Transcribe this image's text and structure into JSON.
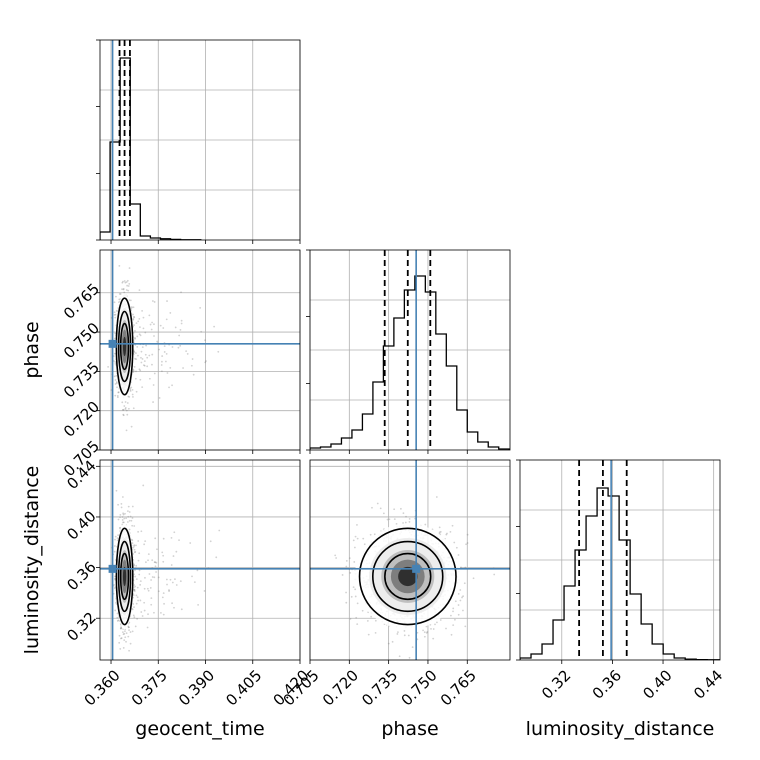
{
  "chart_data": {
    "type": "corner",
    "parameters": [
      "geocent_time",
      "phase",
      "luminosity_distance"
    ],
    "truth": {
      "geocent_time": 0.3605,
      "phase": 0.7455,
      "luminosity_distance": 0.359
    },
    "colors": {
      "truth": "#4682b4",
      "contour": "#000000",
      "hist": "#000000",
      "grid": "#b0b0b0",
      "points": "#7f7f7f"
    },
    "ranges": {
      "geocent_time": [
        0.3565,
        0.42
      ],
      "phase": [
        0.705,
        0.7813
      ],
      "luminosity_distance": [
        0.287,
        0.445
      ]
    },
    "ticks": {
      "geocent_time": [
        "0.360",
        "0.375",
        "0.390",
        "0.405",
        "0.420"
      ],
      "phase": [
        "0.705",
        "0.720",
        "0.735",
        "0.750",
        "0.765"
      ],
      "luminosity_distance": [
        "0.32",
        "0.36",
        "0.40",
        "0.44"
      ]
    },
    "hist1d": {
      "geocent_time": {
        "edges": [
          0.3565,
          0.3597,
          0.3629,
          0.3661,
          0.3693,
          0.3725,
          0.3757,
          0.3789,
          0.3821,
          0.3853,
          0.3885
        ],
        "counts": [
          0.04,
          0.49,
          0.91,
          0.18,
          0.02,
          0.01,
          0.006,
          0.003,
          0.001,
          0.001
        ],
        "quantiles": [
          0.3627,
          0.3643,
          0.366
        ]
      },
      "phase": {
        "edges": [
          0.705,
          0.709,
          0.713,
          0.717,
          0.721,
          0.725,
          0.729,
          0.733,
          0.737,
          0.741,
          0.745,
          0.749,
          0.753,
          0.757,
          0.761,
          0.765,
          0.769,
          0.773,
          0.777,
          0.781
        ],
        "counts": [
          0.01,
          0.015,
          0.03,
          0.06,
          0.1,
          0.18,
          0.34,
          0.52,
          0.66,
          0.8,
          0.87,
          0.79,
          0.58,
          0.42,
          0.2,
          0.09,
          0.04,
          0.015,
          0.005
        ],
        "quantiles": [
          0.7335,
          0.7423,
          0.7509
        ]
      },
      "luminosity_distance": {
        "edges": [
          0.287,
          0.2957,
          0.3044,
          0.3131,
          0.3218,
          0.3305,
          0.3392,
          0.3479,
          0.3566,
          0.3653,
          0.374,
          0.3827,
          0.3914,
          0.4001,
          0.4088,
          0.4175,
          0.4262,
          0.4349,
          0.445
        ],
        "counts": [
          0.01,
          0.03,
          0.08,
          0.2,
          0.37,
          0.55,
          0.72,
          0.86,
          0.82,
          0.6,
          0.33,
          0.18,
          0.08,
          0.03,
          0.01,
          0.004,
          0.002,
          0.001
        ],
        "quantiles": [
          0.3337,
          0.3525,
          0.3713
        ]
      }
    },
    "hist2d": [
      {
        "x": "geocent_time",
        "y": "phase",
        "center": [
          0.3643,
          0.7445
        ],
        "sigma": [
          0.0013,
          0.0092
        ]
      },
      {
        "x": "geocent_time",
        "y": "luminosity_distance",
        "center": [
          0.3643,
          0.353
        ],
        "sigma": [
          0.0013,
          0.019
        ]
      },
      {
        "x": "phase",
        "y": "luminosity_distance",
        "center": [
          0.7423,
          0.353
        ],
        "sigma": [
          0.0092,
          0.019
        ]
      }
    ],
    "xlabel": [
      "geocent_time",
      "phase",
      "luminosity_distance"
    ],
    "ylabel": [
      "",
      "phase",
      "luminosity_distance"
    ],
    "grid": true
  }
}
